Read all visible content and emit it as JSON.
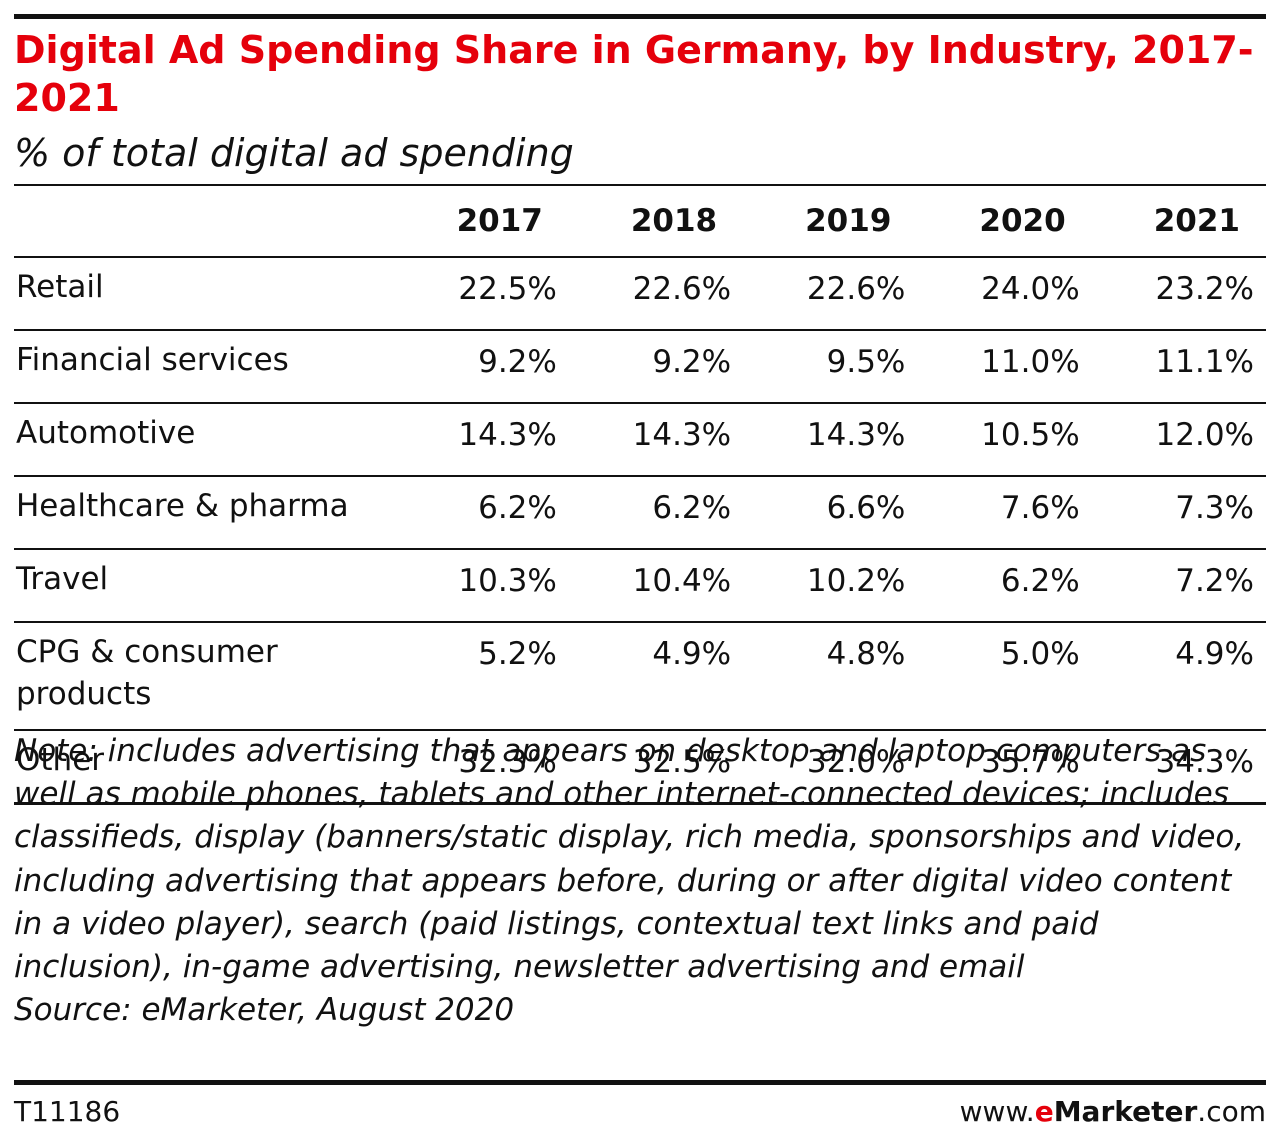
{
  "header": {
    "title": "Digital Ad Spending Share in Germany, by Industry, 2017-2021",
    "subtitle": "% of total digital ad spending"
  },
  "chart_data": {
    "type": "table",
    "title": "Digital Ad Spending Share in Germany, by Industry, 2017-2021",
    "subtitle": "% of total digital ad spending",
    "columns": [
      "2017",
      "2018",
      "2019",
      "2020",
      "2021"
    ],
    "rows": [
      {
        "label": "Retail",
        "values": [
          "22.5%",
          "22.6%",
          "22.6%",
          "24.0%",
          "23.2%"
        ]
      },
      {
        "label": "Financial services",
        "values": [
          "9.2%",
          "9.2%",
          "9.5%",
          "11.0%",
          "11.1%"
        ]
      },
      {
        "label": "Automotive",
        "values": [
          "14.3%",
          "14.3%",
          "14.3%",
          "10.5%",
          "12.0%"
        ]
      },
      {
        "label": "Healthcare & pharma",
        "values": [
          "6.2%",
          "6.2%",
          "6.6%",
          "7.6%",
          "7.3%"
        ]
      },
      {
        "label": "Travel",
        "values": [
          "10.3%",
          "10.4%",
          "10.2%",
          "6.2%",
          "7.2%"
        ]
      },
      {
        "label": "CPG & consumer products",
        "values": [
          "5.2%",
          "4.9%",
          "4.8%",
          "5.0%",
          "4.9%"
        ]
      },
      {
        "label": "Other",
        "values": [
          "32.3%",
          "32.5%",
          "32.0%",
          "35.7%",
          "34.3%"
        ]
      }
    ]
  },
  "footer": {
    "note": "Note: includes advertising that appears on desktop and laptop computers as well as mobile phones, tablets and other internet-connected devices; includes classifieds, display (banners/static display, rich media, sponsorships and video, including advertising that appears before, during or after digital video content in a video player), search (paid listings, contextual text links and paid inclusion), in-game advertising, newsletter advertising and email",
    "source": "Source: eMarketer, August 2020",
    "code": "T11186",
    "brand_prefix": "www.",
    "brand_e": "e",
    "brand_name": "Marketer",
    "brand_suffix": ".com"
  },
  "colors": {
    "title": "#e5000b",
    "text": "#111111",
    "rule": "#111111"
  }
}
